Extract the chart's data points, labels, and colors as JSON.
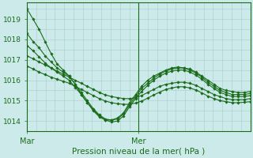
{
  "xlabel": "Pression niveau de la mer( hPa )",
  "bg_color": "#cceaea",
  "grid_color": "#aacccc",
  "line_color": "#1a6b1a",
  "yticks": [
    1014,
    1015,
    1016,
    1017,
    1018,
    1019
  ],
  "ylim": [
    1013.5,
    1019.8
  ],
  "xlim": [
    0,
    48
  ],
  "vline_x": 24,
  "xtick_mar": 0,
  "xtick_mer": 24,
  "series_curved": [
    [
      1019.5,
      1019.0,
      1018.5,
      1017.9,
      1017.3,
      1016.8,
      1016.5,
      1016.2,
      1015.8,
      1015.3,
      1014.9,
      1014.5,
      1014.2,
      1014.05,
      1014.05,
      1014.15,
      1014.4,
      1014.9,
      1015.3,
      1015.7,
      1016.0,
      1016.2,
      1016.35,
      1016.5,
      1016.6,
      1016.65,
      1016.6,
      1016.55,
      1016.4,
      1016.2,
      1016.0,
      1015.8,
      1015.6,
      1015.5,
      1015.45,
      1015.4,
      1015.4,
      1015.45
    ],
    [
      1018.3,
      1017.9,
      1017.6,
      1017.2,
      1016.9,
      1016.6,
      1016.4,
      1016.2,
      1015.8,
      1015.4,
      1015.0,
      1014.6,
      1014.3,
      1014.1,
      1014.05,
      1014.1,
      1014.35,
      1014.8,
      1015.2,
      1015.6,
      1015.85,
      1016.1,
      1016.3,
      1016.45,
      1016.55,
      1016.6,
      1016.6,
      1016.5,
      1016.35,
      1016.15,
      1015.9,
      1015.7,
      1015.5,
      1015.4,
      1015.3,
      1015.3,
      1015.3,
      1015.35
    ],
    [
      1017.7,
      1017.45,
      1017.15,
      1016.85,
      1016.6,
      1016.4,
      1016.2,
      1016.0,
      1015.65,
      1015.3,
      1014.9,
      1014.55,
      1014.25,
      1014.05,
      1013.95,
      1014.0,
      1014.25,
      1014.7,
      1015.1,
      1015.45,
      1015.75,
      1016.0,
      1016.2,
      1016.35,
      1016.45,
      1016.5,
      1016.5,
      1016.4,
      1016.25,
      1016.05,
      1015.8,
      1015.6,
      1015.4,
      1015.3,
      1015.2,
      1015.2,
      1015.2,
      1015.25
    ]
  ],
  "series_straight": [
    [
      1017.2,
      1017.05,
      1016.9,
      1016.75,
      1016.6,
      1016.45,
      1016.3,
      1016.15,
      1016.0,
      1015.85,
      1015.7,
      1015.55,
      1015.4,
      1015.28,
      1015.2,
      1015.15,
      1015.1,
      1015.1,
      1015.15,
      1015.25,
      1015.4,
      1015.55,
      1015.7,
      1015.8,
      1015.85,
      1015.9,
      1015.9,
      1015.85,
      1015.75,
      1015.6,
      1015.45,
      1015.3,
      1015.2,
      1015.1,
      1015.05,
      1015.05,
      1015.05,
      1015.1
    ],
    [
      1016.7,
      1016.55,
      1016.4,
      1016.28,
      1016.15,
      1016.05,
      1015.95,
      1015.85,
      1015.7,
      1015.55,
      1015.4,
      1015.25,
      1015.1,
      1014.98,
      1014.9,
      1014.85,
      1014.82,
      1014.82,
      1014.88,
      1014.98,
      1015.12,
      1015.28,
      1015.42,
      1015.55,
      1015.62,
      1015.68,
      1015.68,
      1015.62,
      1015.52,
      1015.38,
      1015.22,
      1015.1,
      1015.0,
      1014.95,
      1014.9,
      1014.9,
      1014.92,
      1014.95
    ]
  ]
}
